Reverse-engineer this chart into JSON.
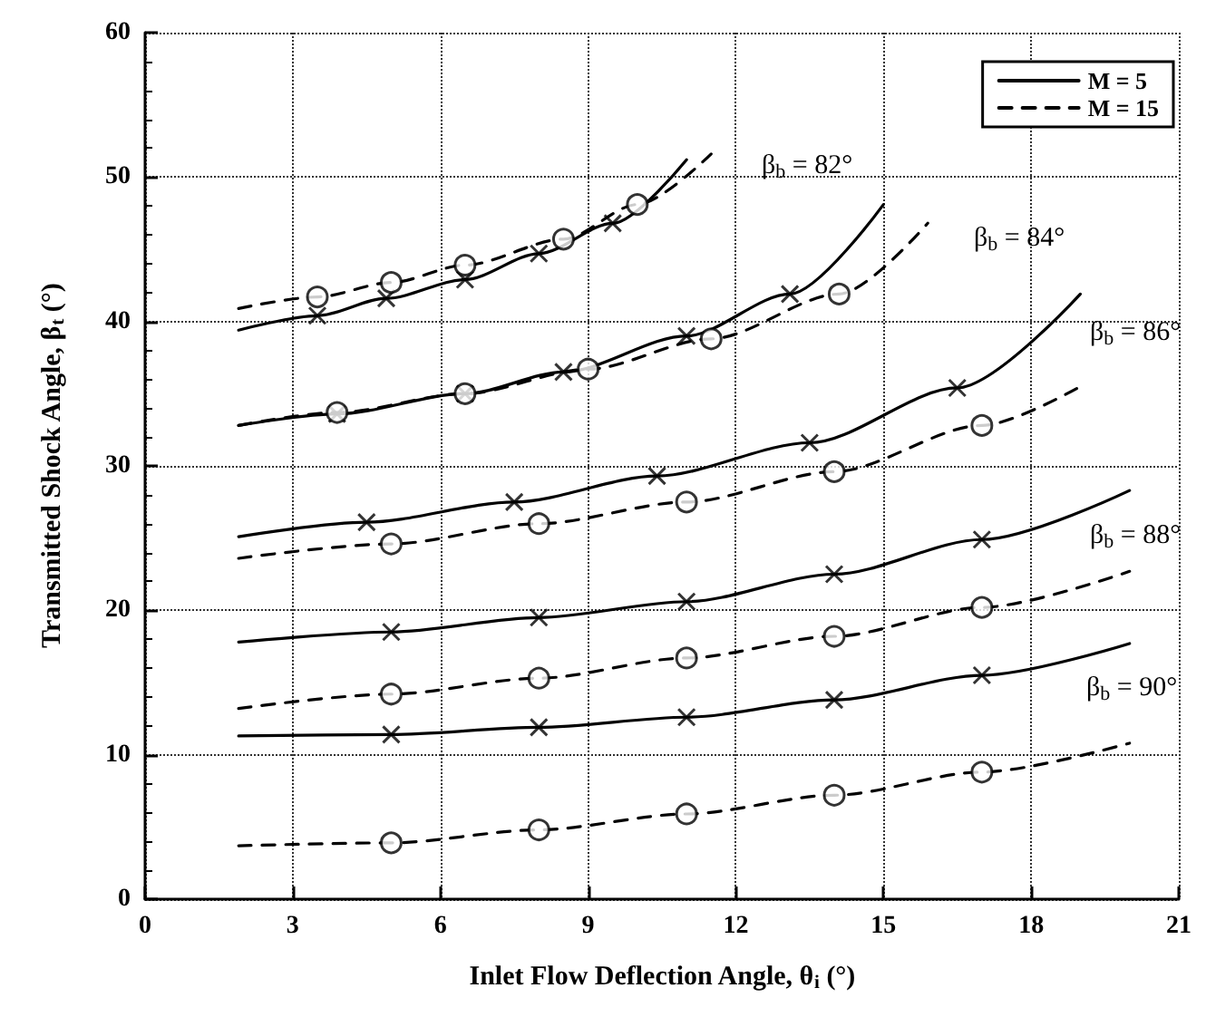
{
  "chart_data": {
    "type": "line",
    "xlabel": "Inlet Flow Deflection Angle, θ$_{i}$ (°)",
    "ylabel": "Transmitted Shock Angle, β$_{t}$ (°)",
    "xlim": [
      0,
      21
    ],
    "xticks": [
      0,
      3,
      6,
      9,
      12,
      15,
      18,
      21
    ],
    "ylim": [
      0,
      60
    ],
    "yticks": [
      0,
      10,
      20,
      30,
      40,
      50,
      60
    ],
    "grid": true,
    "legend": "top right",
    "annotations": [
      "β$_{b}$ = 82°",
      "β$_{b}$ = 84°",
      "β$_{b}$ = 86°",
      "β$_{b}$ = 88°",
      "β$_{b}$ = 90°"
    ],
    "series": [
      {
        "name": "M = 5",
        "color": "#000000",
        "line_style": "solid",
        "marker": "none",
        "x": [
          1.9,
          3.5,
          4.9,
          6.5,
          8.0,
          9.5,
          11.0
        ],
        "values": [
          39.4,
          40.4,
          41.6,
          42.9,
          44.7,
          46.8,
          51.2
        ]
      },
      {
        "type": "scatter",
        "color": "#000000",
        "marker": "cross",
        "x": [
          3.5,
          4.9,
          6.5,
          8.0,
          9.5
        ],
        "values": [
          40.4,
          41.6,
          42.9,
          44.7,
          46.8
        ]
      },
      {
        "name": "M = 15",
        "color": "#000000",
        "line_style": "dashed",
        "marker": "none",
        "x": [
          1.9,
          3.5,
          5.0,
          6.5,
          8.5,
          10.0,
          11.5
        ],
        "values": [
          40.9,
          41.7,
          42.7,
          43.9,
          45.7,
          48.1,
          51.6
        ]
      },
      {
        "type": "scatter",
        "color": "#000000",
        "marker": "circle",
        "x": [
          3.5,
          5.0,
          6.5,
          8.5,
          10.0
        ],
        "values": [
          41.7,
          42.7,
          43.9,
          45.7,
          48.1
        ]
      },
      {
        "color": "#000000",
        "line_style": "solid",
        "marker": "none",
        "x": [
          1.9,
          3.9,
          6.5,
          8.5,
          11.0,
          13.1,
          15.0
        ],
        "values": [
          32.8,
          33.6,
          35.0,
          36.5,
          39.0,
          41.9,
          48.1
        ]
      },
      {
        "type": "scatter",
        "color": "#000000",
        "marker": "cross",
        "x": [
          3.9,
          6.5,
          8.5,
          11.0,
          13.1
        ],
        "values": [
          33.6,
          35.0,
          36.5,
          39.0,
          41.9
        ]
      },
      {
        "color": "#000000",
        "line_style": "dashed",
        "marker": "none",
        "x": [
          1.9,
          3.9,
          6.5,
          9.0,
          11.5,
          14.1,
          15.9
        ],
        "values": [
          32.8,
          33.7,
          35.0,
          36.7,
          38.8,
          41.9,
          46.8
        ]
      },
      {
        "type": "scatter",
        "color": "#000000",
        "marker": "circle",
        "x": [
          3.9,
          6.5,
          9.0,
          11.5,
          14.1
        ],
        "values": [
          33.7,
          35.0,
          36.7,
          38.8,
          41.9
        ]
      },
      {
        "color": "#000000",
        "line_style": "solid",
        "marker": "none",
        "x": [
          1.9,
          4.5,
          7.5,
          10.4,
          13.5,
          16.5,
          19.0
        ],
        "values": [
          25.1,
          26.1,
          27.5,
          29.3,
          31.6,
          35.4,
          41.9
        ]
      },
      {
        "type": "scatter",
        "color": "#000000",
        "marker": "cross",
        "x": [
          4.5,
          7.5,
          10.4,
          13.5,
          16.5
        ],
        "values": [
          26.1,
          27.5,
          29.3,
          31.6,
          35.4
        ]
      },
      {
        "color": "#000000",
        "line_style": "dashed",
        "marker": "none",
        "x": [
          1.9,
          5.0,
          8.0,
          11.0,
          14.0,
          17.0,
          19.0
        ],
        "values": [
          23.6,
          24.6,
          26.0,
          27.5,
          29.6,
          32.8,
          35.5
        ]
      },
      {
        "type": "scatter",
        "color": "#000000",
        "marker": "circle",
        "x": [
          5.0,
          8.0,
          11.0,
          14.0,
          17.0
        ],
        "values": [
          24.6,
          26.0,
          27.5,
          29.6,
          32.8
        ]
      },
      {
        "color": "#000000",
        "line_style": "solid",
        "marker": "none",
        "x": [
          1.9,
          5.0,
          8.0,
          11.0,
          14.0,
          17.0,
          20.0
        ],
        "values": [
          17.8,
          18.5,
          19.5,
          20.6,
          22.5,
          24.9,
          28.3
        ]
      },
      {
        "type": "scatter",
        "color": "#000000",
        "marker": "cross",
        "x": [
          5.0,
          8.0,
          11.0,
          14.0,
          17.0
        ],
        "values": [
          18.5,
          19.5,
          20.6,
          22.5,
          24.9
        ]
      },
      {
        "color": "#000000",
        "line_style": "dashed",
        "marker": "none",
        "x": [
          1.9,
          5.0,
          8.0,
          11.0,
          14.0,
          17.0,
          20.0
        ],
        "values": [
          13.2,
          14.2,
          15.3,
          16.7,
          18.2,
          20.2,
          22.7
        ]
      },
      {
        "type": "scatter",
        "color": "#000000",
        "marker": "circle",
        "x": [
          5.0,
          8.0,
          11.0,
          14.0,
          17.0
        ],
        "values": [
          14.2,
          15.3,
          16.7,
          18.2,
          20.2
        ]
      },
      {
        "color": "#000000",
        "line_style": "solid",
        "marker": "none",
        "x": [
          1.9,
          5.0,
          8.0,
          11.0,
          14.0,
          17.0,
          20.0
        ],
        "values": [
          11.3,
          11.4,
          11.9,
          12.6,
          13.8,
          15.5,
          17.7
        ]
      },
      {
        "type": "scatter",
        "color": "#000000",
        "marker": "cross",
        "x": [
          5.0,
          8.0,
          11.0,
          14.0,
          17.0
        ],
        "values": [
          11.4,
          11.9,
          12.6,
          13.8,
          15.5
        ]
      },
      {
        "color": "#000000",
        "line_style": "dashed",
        "marker": "none",
        "x": [
          1.9,
          5.0,
          8.0,
          11.0,
          14.0,
          17.0,
          20.0
        ],
        "values": [
          3.7,
          3.9,
          4.8,
          5.9,
          7.2,
          8.8,
          10.8
        ]
      },
      {
        "type": "scatter",
        "color": "#000000",
        "marker": "circle",
        "x": [
          5.0,
          8.0,
          11.0,
          14.0,
          17.0
        ],
        "values": [
          3.9,
          4.8,
          5.9,
          7.2,
          8.8
        ]
      }
    ]
  }
}
